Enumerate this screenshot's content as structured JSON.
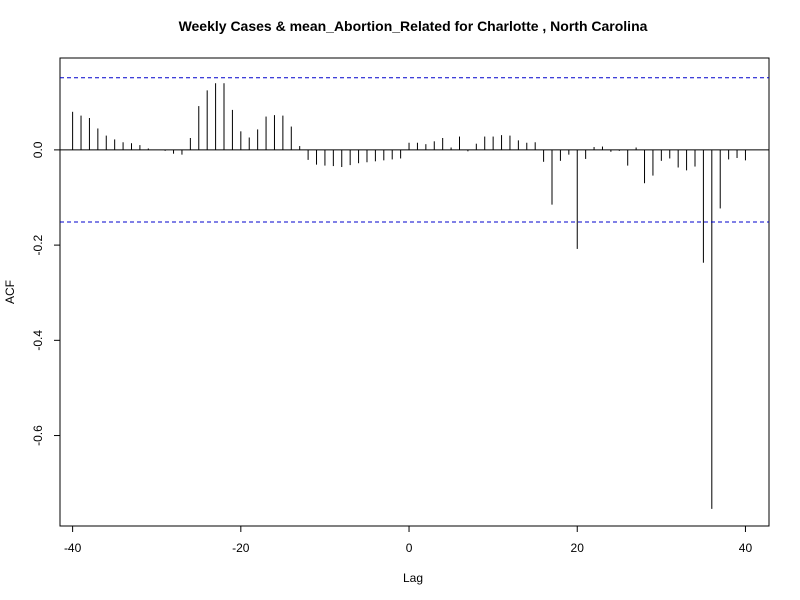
{
  "chart_data": {
    "type": "bar",
    "subtype": "acf-stem",
    "title": "Weekly Cases & mean_Abortion_Related for Charlotte , North Carolina",
    "xlabel": "Lag",
    "ylabel": "ACF",
    "xlim": [
      -41.5,
      42.8
    ],
    "ylim": [
      -0.79,
      0.193
    ],
    "xticks": [
      -40,
      -20,
      0,
      20,
      40
    ],
    "yticks": [
      -0.6,
      -0.4,
      -0.2,
      0.0
    ],
    "ytick_labels": [
      "-0.6",
      "-0.4",
      "-0.2",
      "0.0"
    ],
    "confidence_bounds": [
      0.1515,
      -0.1515
    ],
    "zero_line": true,
    "colors": {
      "bars": "#000000",
      "confidence": "#0000cc",
      "frame": "#000000"
    },
    "lags": [
      -40,
      -39,
      -38,
      -37,
      -36,
      -35,
      -34,
      -33,
      -32,
      -31,
      -30,
      -29,
      -28,
      -27,
      -26,
      -25,
      -24,
      -23,
      -22,
      -21,
      -20,
      -19,
      -18,
      -17,
      -16,
      -15,
      -14,
      -13,
      -12,
      -11,
      -10,
      -9,
      -8,
      -7,
      -6,
      -5,
      -4,
      -3,
      -2,
      -1,
      0,
      1,
      2,
      3,
      4,
      5,
      6,
      7,
      8,
      9,
      10,
      11,
      12,
      13,
      14,
      15,
      16,
      17,
      18,
      19,
      20,
      21,
      22,
      23,
      24,
      25,
      26,
      27,
      28,
      29,
      30,
      31,
      32,
      33,
      34,
      35,
      36,
      37,
      38,
      39,
      40
    ],
    "values": [
      0.08,
      0.072,
      0.067,
      0.045,
      0.03,
      0.022,
      0.016,
      0.014,
      0.01,
      0.003,
      0.0,
      -0.002,
      -0.008,
      -0.01,
      0.025,
      0.092,
      0.125,
      0.14,
      0.14,
      0.084,
      0.039,
      0.026,
      0.043,
      0.07,
      0.073,
      0.072,
      0.049,
      0.008,
      -0.021,
      -0.031,
      -0.033,
      -0.034,
      -0.036,
      -0.032,
      -0.028,
      -0.026,
      -0.024,
      -0.022,
      -0.02,
      -0.018,
      0.015,
      0.015,
      0.012,
      0.018,
      0.025,
      0.005,
      0.028,
      -0.003,
      0.013,
      0.028,
      0.028,
      0.031,
      0.03,
      0.02,
      0.015,
      0.016,
      -0.025,
      -0.115,
      -0.023,
      -0.01,
      -0.208,
      -0.019,
      0.006,
      0.007,
      -0.004,
      -0.002,
      -0.033,
      0.005,
      -0.07,
      -0.054,
      -0.023,
      -0.018,
      -0.037,
      -0.043,
      -0.035,
      -0.237,
      -0.754,
      -0.123,
      -0.02,
      -0.017,
      -0.022
    ]
  }
}
